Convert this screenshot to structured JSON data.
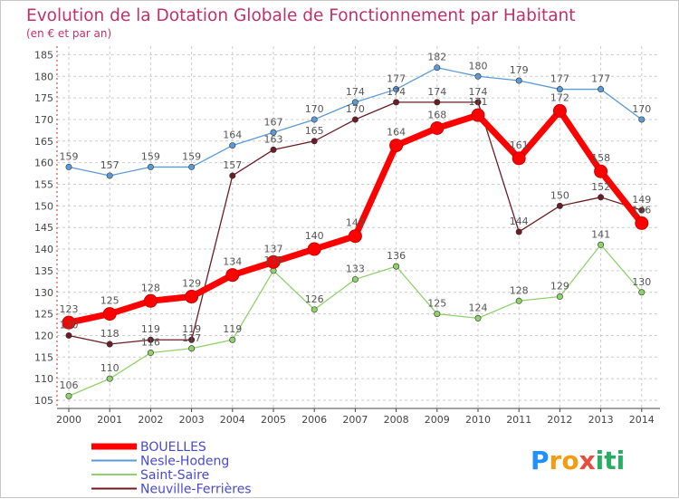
{
  "chart_data": {
    "type": "line",
    "title": "Evolution de la Dotation Globale de Fonctionnement par Habitant",
    "subtitle": "(en € et par an)",
    "xlabel": "",
    "ylabel": "",
    "ylim": [
      105,
      185
    ],
    "yticks": [
      105,
      110,
      115,
      120,
      125,
      130,
      135,
      140,
      145,
      150,
      155,
      160,
      165,
      170,
      175,
      180,
      185
    ],
    "categories": [
      "2000",
      "2001",
      "2002",
      "2003",
      "2004",
      "2005",
      "2006",
      "2007",
      "2008",
      "2009",
      "2010",
      "2011",
      "2012",
      "2013",
      "2014"
    ],
    "grid": true,
    "legend_position": "bottom-left",
    "series": [
      {
        "name": "Nesle-Hodeng",
        "color": "#5b9bd5",
        "values": [
          159,
          157,
          159,
          159,
          164,
          167,
          170,
          174,
          177,
          182,
          180,
          179,
          177,
          177,
          170
        ]
      },
      {
        "name": "Neuville-Ferrières",
        "color": "#6b1c24",
        "values": [
          120,
          118,
          119,
          119,
          157,
          163,
          165,
          170,
          174,
          174,
          174,
          144,
          150,
          152,
          149
        ]
      },
      {
        "name": "Saint-Saire",
        "color": "#8fd16a",
        "values": [
          106,
          110,
          116,
          117,
          119,
          135,
          126,
          133,
          136,
          125,
          124,
          128,
          129,
          141,
          130
        ]
      },
      {
        "name": "BOUELLES",
        "color": "#ff0000",
        "values": [
          123,
          125,
          128,
          129,
          134,
          137,
          140,
          143,
          164,
          168,
          171,
          161,
          172,
          158,
          146
        ]
      }
    ],
    "legend_order": [
      "BOUELLES",
      "Nesle-Hodeng",
      "Saint-Saire",
      "Neuville-Ferrières"
    ]
  },
  "logo": {
    "text": "Proxiti",
    "letters": [
      "P",
      "r",
      "o",
      "x",
      "i",
      "t",
      "i"
    ],
    "colors": [
      "#1e90ff",
      "#f39c12",
      "#f39c12",
      "#e74c3c",
      "#27ae60",
      "#27ae60",
      "#27ae60"
    ]
  },
  "colors": {
    "title": "#c0306b",
    "axis": "#444444",
    "grid": "#cccccc",
    "label": "#555555"
  }
}
